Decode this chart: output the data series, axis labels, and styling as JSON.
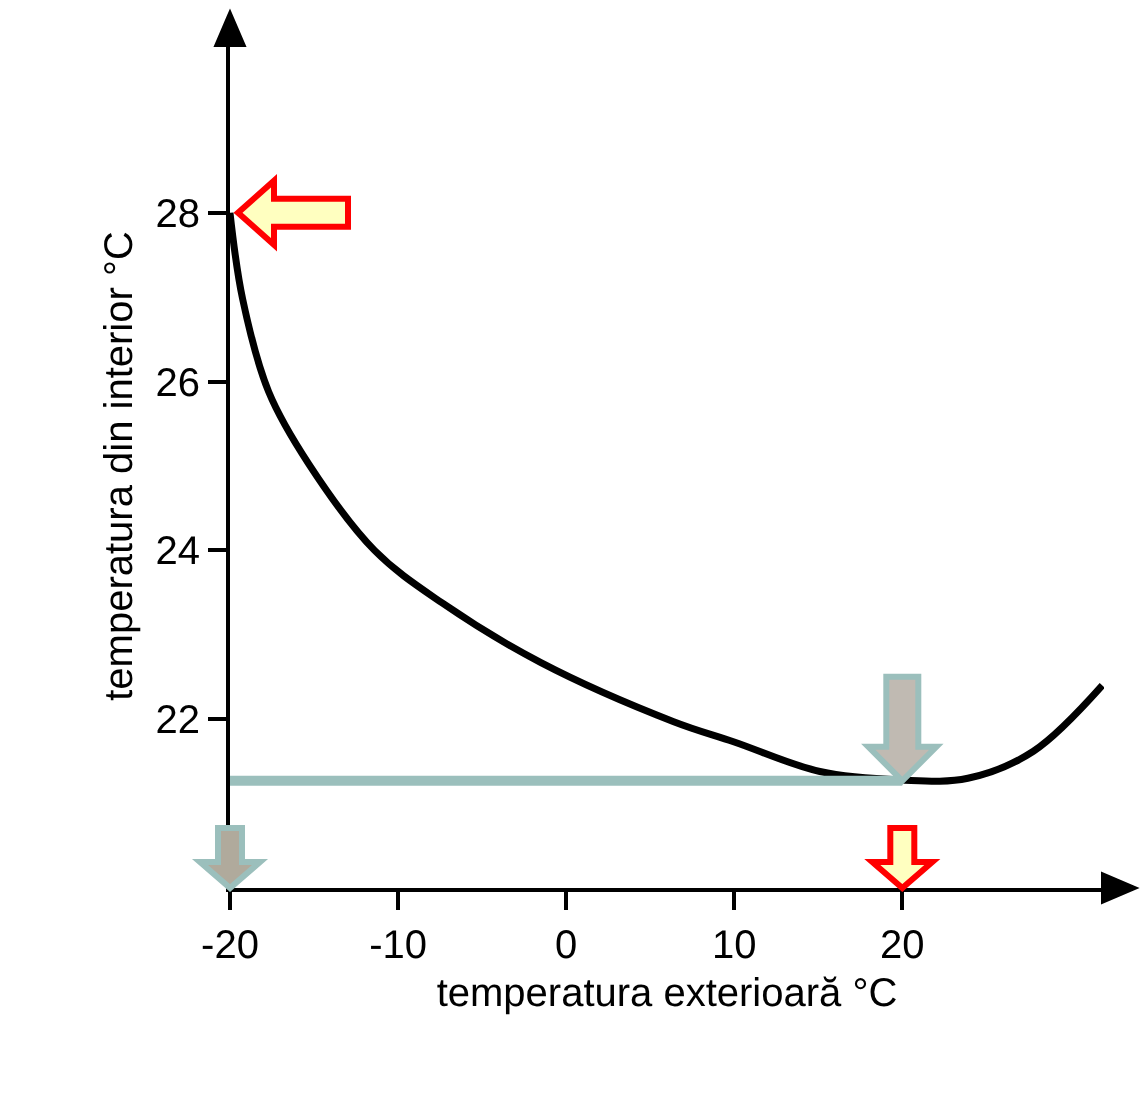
{
  "chart_data": {
    "type": "line",
    "xlabel": "temperatura exterioară °C",
    "ylabel": "temperatura din interior °C",
    "xlim": [
      -20,
      32
    ],
    "ylim": [
      20,
      30
    ],
    "xticks": [
      -20,
      -10,
      0,
      10,
      20
    ],
    "yticks": [
      22,
      24,
      26,
      28
    ],
    "series": [
      {
        "color": "#000000",
        "x": [
          -20,
          -19.25,
          -17.7,
          -15.3,
          -11.4,
          -7.4,
          -1.5,
          6.4,
          10,
          15.1,
          19.9,
          23.9,
          27.8,
          31.9
        ],
        "values": [
          28,
          26.98,
          25.88,
          25.02,
          24.0,
          23.38,
          22.67,
          21.97,
          21.73,
          21.38,
          21.28,
          21.3,
          21.62,
          22.4
        ]
      },
      {
        "color": "#9bbfbc",
        "x": [
          -20,
          20
        ],
        "values": [
          21.27,
          21.27
        ]
      }
    ]
  }
}
